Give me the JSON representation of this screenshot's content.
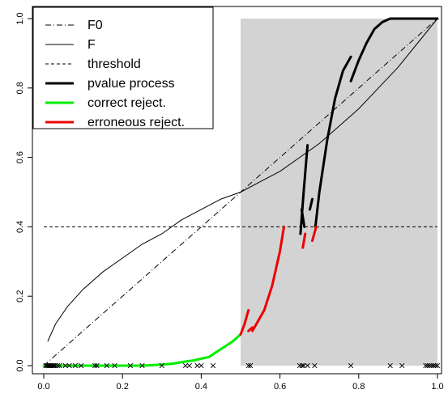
{
  "chart_data": {
    "type": "line",
    "title": "",
    "xlabel": "",
    "ylabel": "",
    "xlim": [
      0,
      1
    ],
    "ylim": [
      0,
      1
    ],
    "grid": false,
    "legend_position": "top-left",
    "x_ticks": [
      "0.0",
      "0.2",
      "0.4",
      "0.6",
      "0.8",
      "1.0"
    ],
    "y_ticks": [
      "0.0",
      "0.2",
      "0.4",
      "0.6",
      "0.8",
      "1.0"
    ],
    "shaded_region": {
      "x": [
        0.5,
        1.0
      ],
      "y": [
        0,
        1
      ],
      "color": "#d3d3d3"
    },
    "colors": {
      "pvalue": "#000000",
      "correct": "#00ee00",
      "erroneous": "#ee0000",
      "shade": "#d3d3d3"
    },
    "legend": [
      {
        "label": "F0",
        "style": "dotdash"
      },
      {
        "label": "F",
        "style": "solid-thin"
      },
      {
        "label": "threshold",
        "style": "dashed"
      },
      {
        "label": "pvalue process",
        "style": "solid-thick-black"
      },
      {
        "label": "correct reject.",
        "style": "solid-thick-green"
      },
      {
        "label": "erroneous reject.",
        "style": "solid-thick-red"
      }
    ],
    "series": [
      {
        "name": "F0",
        "x": [
          0,
          1
        ],
        "y": [
          0,
          1
        ]
      },
      {
        "name": "F",
        "x": [
          0.01,
          0.03,
          0.06,
          0.1,
          0.15,
          0.2,
          0.25,
          0.3,
          0.35,
          0.4,
          0.45,
          0.5,
          0.55,
          0.6,
          0.65,
          0.7,
          0.75,
          0.8,
          0.85,
          0.9,
          0.95,
          1.0
        ],
        "y": [
          0.07,
          0.12,
          0.17,
          0.22,
          0.27,
          0.31,
          0.35,
          0.38,
          0.42,
          0.45,
          0.48,
          0.5,
          0.53,
          0.56,
          0.6,
          0.64,
          0.69,
          0.74,
          0.8,
          0.86,
          0.93,
          1.0
        ]
      },
      {
        "name": "threshold",
        "x": [
          0,
          1
        ],
        "y": [
          0.4,
          0.4
        ]
      },
      {
        "name": "pvalue process",
        "segments": [
          {
            "x": [
              0.655,
              0.662
            ],
            "y": [
              0.45,
              0.4
            ]
          },
          {
            "x": [
              0.652,
              0.66,
              0.67
            ],
            "y": [
              0.38,
              0.5,
              0.635
            ]
          },
          {
            "x": [
              0.676,
              0.682
            ],
            "y": [
              0.45,
              0.48
            ]
          },
          {
            "x": [
              0.69,
              0.7,
              0.72,
              0.74,
              0.76,
              0.78
            ],
            "y": [
              0.4,
              0.5,
              0.65,
              0.77,
              0.85,
              0.89
            ]
          },
          {
            "x": [
              0.78,
              0.8,
              0.82,
              0.84,
              0.86,
              0.88,
              0.9,
              0.92,
              0.95,
              1.0
            ],
            "y": [
              0.82,
              0.88,
              0.93,
              0.97,
              0.99,
              1.0,
              1.0,
              1.0,
              1.0,
              1.0
            ]
          }
        ]
      },
      {
        "name": "correct reject.",
        "segments": [
          {
            "x": [
              0.0,
              0.05,
              0.1,
              0.15,
              0.2,
              0.25,
              0.3,
              0.33,
              0.36,
              0.38,
              0.4,
              0.42,
              0.44,
              0.46,
              0.48,
              0.5
            ],
            "y": [
              0.0,
              0.0,
              0.0,
              0.0,
              0.0,
              0.0,
              0.003,
              0.006,
              0.012,
              0.015,
              0.02,
              0.025,
              0.04,
              0.055,
              0.07,
              0.09
            ]
          }
        ]
      },
      {
        "name": "erroneous reject.",
        "segments": [
          {
            "x": [
              0.5,
              0.51,
              0.52
            ],
            "y": [
              0.09,
              0.12,
              0.16
            ]
          },
          {
            "x": [
              0.52,
              0.53
            ],
            "y": [
              0.1,
              0.11
            ]
          },
          {
            "x": [
              0.53,
              0.56,
              0.58,
              0.6,
              0.61
            ],
            "y": [
              0.1,
              0.16,
              0.23,
              0.33,
              0.4
            ]
          },
          {
            "x": [
              0.658,
              0.664
            ],
            "y": [
              0.34,
              0.38
            ]
          },
          {
            "x": [
              0.682,
              0.692
            ],
            "y": [
              0.36,
              0.4
            ]
          }
        ]
      }
    ],
    "rug_points": [
      0.005,
      0.008,
      0.011,
      0.014,
      0.017,
      0.02,
      0.023,
      0.026,
      0.029,
      0.035,
      0.04,
      0.055,
      0.065,
      0.08,
      0.095,
      0.13,
      0.135,
      0.16,
      0.18,
      0.22,
      0.25,
      0.3,
      0.36,
      0.37,
      0.39,
      0.4,
      0.43,
      0.52,
      0.525,
      0.65,
      0.656,
      0.66,
      0.67,
      0.688,
      0.78,
      0.88,
      0.91,
      0.97,
      0.975,
      0.98,
      0.985,
      0.99,
      0.995,
      1.0
    ]
  }
}
